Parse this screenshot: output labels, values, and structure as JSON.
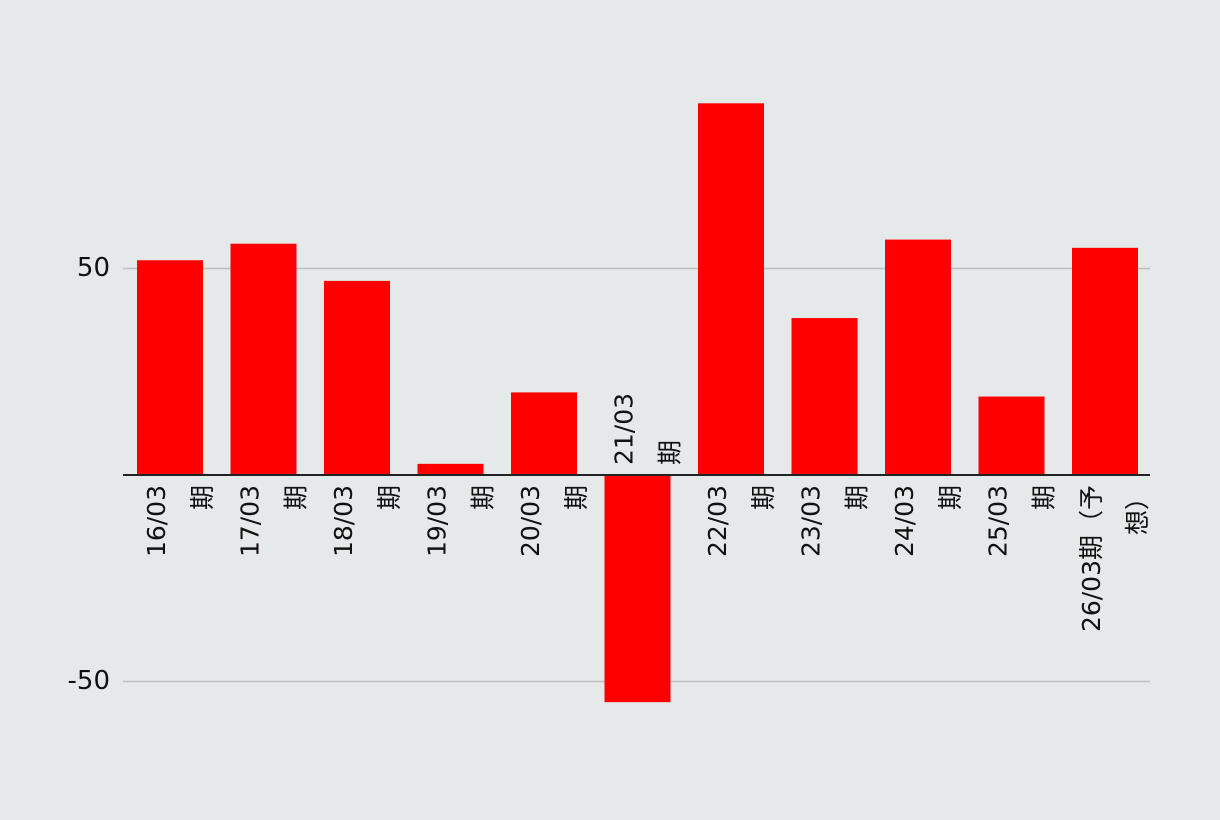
{
  "chart_data": {
    "type": "bar",
    "title": "",
    "xlabel": "",
    "ylabel": "",
    "categories": [
      [
        "16/03",
        "期"
      ],
      [
        "17/03",
        "期"
      ],
      [
        "18/03",
        "期"
      ],
      [
        "19/03",
        "期"
      ],
      [
        "20/03",
        "期"
      ],
      [
        "21/03",
        "期"
      ],
      [
        "22/03",
        "期"
      ],
      [
        "23/03",
        "期"
      ],
      [
        "24/03",
        "期"
      ],
      [
        "25/03",
        "期"
      ],
      [
        "26/03期（予",
        "想）"
      ]
    ],
    "values": [
      52,
      56,
      47,
      2.7,
      20,
      -55,
      90,
      38,
      57,
      19,
      55
    ],
    "ylim": [
      -65,
      110
    ],
    "yticks": [
      50,
      -50
    ],
    "grid": true,
    "legend": "none",
    "colors": {
      "bar": "#ff0000",
      "background": "#e5e9ea",
      "grid": "#bdbfc0",
      "axis": "#222222",
      "text": "#111111"
    }
  }
}
